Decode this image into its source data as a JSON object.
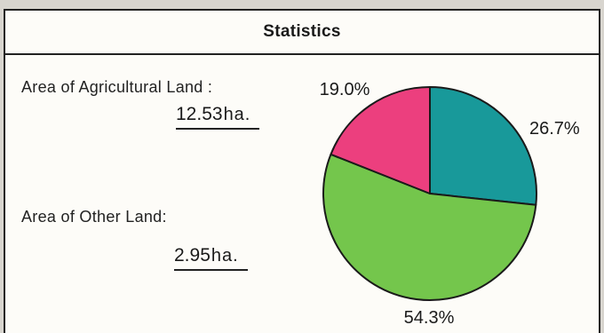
{
  "panel": {
    "title": "Statistics"
  },
  "stats": {
    "agricultural": {
      "label": "Area of Agricultural Land :",
      "value": "12.53",
      "unit": "ha."
    },
    "other": {
      "label": "Area of Other Land:",
      "value": "2.95",
      "unit": "ha."
    }
  },
  "chart_data": {
    "type": "pie",
    "slices": [
      {
        "value": 26.7,
        "label": "26.7%",
        "color": "#18999a"
      },
      {
        "value": 54.3,
        "label": "54.3%",
        "color": "#74c64c"
      },
      {
        "value": 19.0,
        "label": "19.0%",
        "color": "#ec3f7e"
      }
    ],
    "start_angle_deg": 0,
    "direction": "clockwise",
    "legend": "none"
  }
}
